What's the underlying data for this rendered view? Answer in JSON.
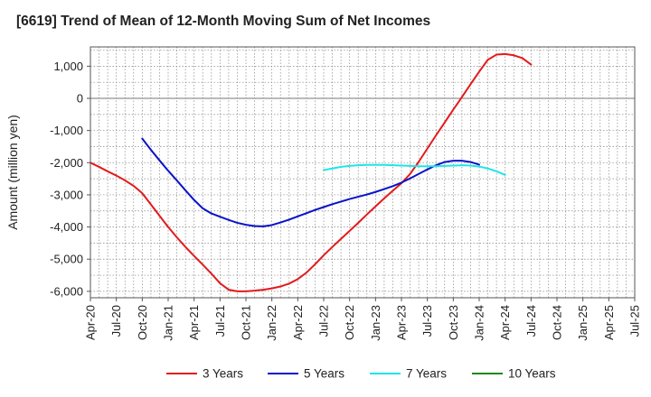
{
  "chart_data": {
    "type": "line",
    "title": "[6619]  Trend of Mean of 12-Month Moving Sum of Net Incomes",
    "xlabel": "",
    "ylabel": "Amount (million yen)",
    "ylim": [
      -6200,
      1600
    ],
    "y_ticks": [
      1000,
      0,
      -1000,
      -2000,
      -3000,
      -4000,
      -5000,
      -6000
    ],
    "y_tick_labels": [
      "1,000",
      "0",
      "-1,000",
      "-2,000",
      "-3,000",
      "-4,000",
      "-5,000",
      "-6,000"
    ],
    "x_tick_labels": [
      "Apr-20",
      "Jul-20",
      "Oct-20",
      "Jan-21",
      "Apr-21",
      "Jul-21",
      "Oct-21",
      "Jan-22",
      "Apr-22",
      "Jul-22",
      "Oct-22",
      "Jan-23",
      "Apr-23",
      "Jul-23",
      "Oct-23",
      "Jan-24",
      "Apr-24",
      "Jul-24",
      "Oct-24",
      "Jan-25",
      "Apr-25",
      "Jul-25"
    ],
    "grid": true,
    "legend_position": "bottom",
    "series": [
      {
        "name": "3 Years",
        "color": "#e31a1c",
        "start_index": 0,
        "values": [
          -2000,
          -2130,
          -2270,
          -2400,
          -2550,
          -2720,
          -2950,
          -3300,
          -3650,
          -4000,
          -4320,
          -4620,
          -4900,
          -5170,
          -5450,
          -5750,
          -5950,
          -6000,
          -6000,
          -5980,
          -5950,
          -5910,
          -5850,
          -5760,
          -5620,
          -5420,
          -5160,
          -4880,
          -4620,
          -4370,
          -4120,
          -3870,
          -3610,
          -3360,
          -3110,
          -2870,
          -2640,
          -2350,
          -1970,
          -1560,
          -1150,
          -750,
          -350,
          40,
          440,
          830,
          1200,
          1360,
          1380,
          1340,
          1250,
          1050
        ]
      },
      {
        "name": "5 Years",
        "color": "#0a12c8",
        "start_index": 6,
        "values": [
          -1250,
          -1600,
          -1930,
          -2250,
          -2550,
          -2860,
          -3160,
          -3420,
          -3580,
          -3680,
          -3780,
          -3870,
          -3930,
          -3970,
          -3980,
          -3940,
          -3860,
          -3770,
          -3670,
          -3570,
          -3470,
          -3380,
          -3290,
          -3210,
          -3130,
          -3060,
          -2990,
          -2910,
          -2820,
          -2730,
          -2620,
          -2490,
          -2350,
          -2210,
          -2080,
          -1980,
          -1940,
          -1940,
          -1980,
          -2060
        ]
      },
      {
        "name": "7 Years",
        "color": "#1fe5e8",
        "start_index": 27,
        "values": [
          -2230,
          -2180,
          -2130,
          -2100,
          -2080,
          -2070,
          -2070,
          -2070,
          -2080,
          -2090,
          -2100,
          -2110,
          -2110,
          -2110,
          -2100,
          -2090,
          -2080,
          -2090,
          -2120,
          -2180,
          -2270,
          -2380
        ]
      },
      {
        "name": "10 Years",
        "color": "#1a8a1a",
        "start_index": 0,
        "values": []
      }
    ]
  }
}
